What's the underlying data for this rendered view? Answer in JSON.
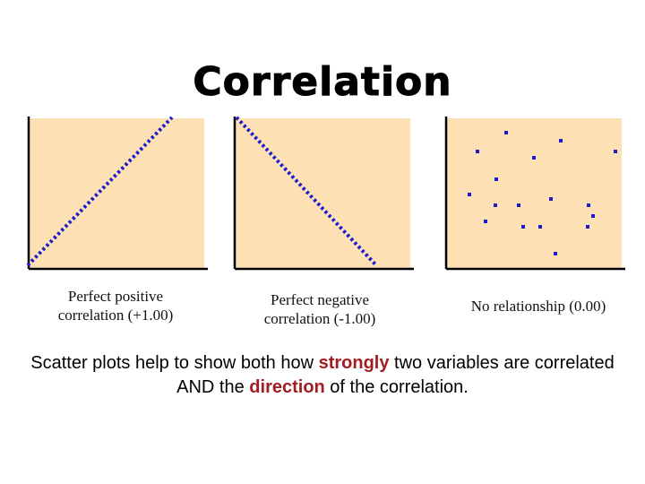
{
  "title": "Correlation",
  "colors": {
    "panel_fill": "#fde1b5",
    "axis": "#000000",
    "marker": "#1c1ccf",
    "highlight": "#a11d21"
  },
  "panels": [
    {
      "id": "positive",
      "caption_lines": [
        "Perfect positive",
        "correlation (+1.00)"
      ],
      "chart_data": {
        "type": "scatter",
        "trend": "positive",
        "r": 1.0
      }
    },
    {
      "id": "negative",
      "caption_lines": [
        "Perfect negative",
        "correlation (-1.00)"
      ],
      "chart_data": {
        "type": "scatter",
        "trend": "negative",
        "r": -1.0
      }
    },
    {
      "id": "none",
      "caption_lines": [
        "No relationship (0.00)"
      ],
      "chart_data": {
        "type": "scatter",
        "trend": "none",
        "r": 0.0
      }
    }
  ],
  "summary": {
    "part1": "Scatter plots help to show both how ",
    "strong": "strongly",
    "part2": " two variables are correlated AND the ",
    "direction": "direction",
    "part3": " of the correlation."
  }
}
